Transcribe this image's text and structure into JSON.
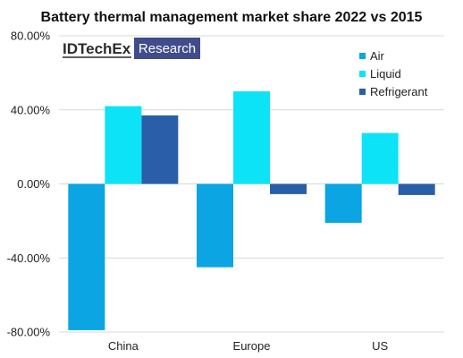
{
  "chart_data": {
    "type": "bar",
    "title": "Battery thermal management market share 2022 vs 2015",
    "categories": [
      "China",
      "Europe",
      "US"
    ],
    "series": [
      {
        "name": "Air",
        "color": "#0aa5e2",
        "values": [
          -79,
          -45,
          -21
        ]
      },
      {
        "name": "Liquid",
        "color": "#0de3f7",
        "values": [
          42,
          50,
          27.5
        ]
      },
      {
        "name": "Refrigerant",
        "color": "#2a5ea8",
        "values": [
          37,
          -5.5,
          -6
        ]
      }
    ],
    "ylim": [
      -80,
      80
    ],
    "yticks": [
      80,
      40,
      0,
      -40,
      -80
    ],
    "ytick_labels": [
      "80.00%",
      "40.00%",
      "0.00%",
      "-40.00%",
      "-80.00%"
    ],
    "grid": true,
    "legend": "top-right",
    "xlabel": "",
    "ylabel": ""
  },
  "logo": {
    "left_text": "IDTechEx",
    "right_text": "Research",
    "right_bg": "#404c8c"
  }
}
